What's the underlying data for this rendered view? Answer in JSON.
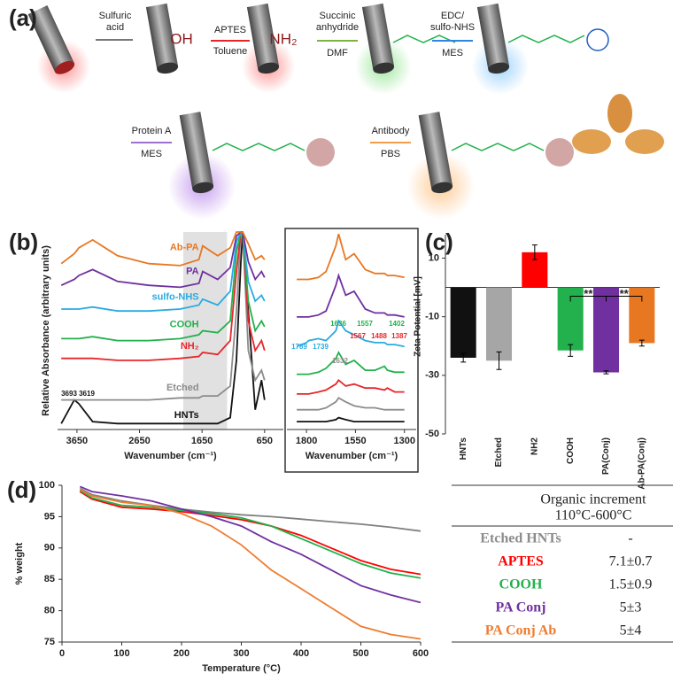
{
  "panel_a": {
    "label": "(a)",
    "texts": [
      "Sulfuric",
      "acid",
      "OH",
      "APTES",
      "Toluene",
      "NH₂",
      "Succinic",
      "anhydride",
      "DMF",
      "EDC/",
      "sulfo-NHS",
      "MES",
      "Protein A",
      "MES",
      "Antibody",
      "PBS"
    ]
  },
  "chart_data": [
    {
      "type": "line",
      "panel": "(b)",
      "ylabel": "Relative Absorbance (arbitrary units)",
      "xlabel": "Wavenumber (cm⁻¹)",
      "xlim": [
        3960,
        350
      ],
      "ylim": [
        0,
        10
      ],
      "xticks": [
        3650,
        2650,
        1650,
        650
      ],
      "highlight": [
        1950,
        1250
      ],
      "x": [
        3900,
        3693,
        3619,
        3400,
        3000,
        2500,
        2000,
        1700,
        1640,
        1400,
        1200,
        1100,
        1030,
        1000,
        910,
        800,
        700,
        650
      ],
      "series": [
        {
          "name": "HNTs",
          "color": "#111111",
          "values": [
            0.3,
            1.5,
            1.3,
            0.4,
            0.3,
            0.3,
            0.3,
            0.3,
            0.3,
            0.3,
            0.6,
            3.5,
            8.5,
            10,
            6,
            1,
            2.5,
            1.5
          ]
        },
        {
          "name": "Etched",
          "color": "#8c8c8c",
          "values": [
            1.5,
            1.5,
            1.5,
            1.5,
            1.5,
            1.5,
            1.6,
            1.6,
            1.7,
            1.7,
            2.2,
            6,
            10,
            10,
            4,
            2.5,
            3,
            2.5
          ]
        },
        {
          "name": "NH₂",
          "color": "#e8262a",
          "values": [
            3.6,
            3.6,
            3.6,
            3.6,
            3.5,
            3.5,
            3.6,
            3.7,
            3.9,
            3.8,
            4.5,
            8,
            10,
            10,
            5.5,
            4,
            4.5,
            4
          ]
        },
        {
          "name": "COOH",
          "color": "#22b14c",
          "values": [
            4.6,
            4.6,
            4.6,
            4.7,
            4.5,
            4.5,
            4.6,
            4.8,
            5.0,
            4.9,
            5.5,
            9,
            10,
            10,
            6.5,
            5,
            5.5,
            5.2
          ]
        },
        {
          "name": "sulfo-NHS",
          "color": "#29abe2",
          "values": [
            6.1,
            6.1,
            6.1,
            6.2,
            6.0,
            6.0,
            6.1,
            6.3,
            6.6,
            6.3,
            7,
            9.5,
            10,
            10,
            7.5,
            6.5,
            6.8,
            6.5
          ]
        },
        {
          "name": "PA",
          "color": "#7030a0",
          "values": [
            7.3,
            7.6,
            7.8,
            8.1,
            7.5,
            7.3,
            7.2,
            7.4,
            8.0,
            7.6,
            8.2,
            9.8,
            10,
            10,
            8.5,
            7.6,
            8,
            7.7
          ]
        },
        {
          "name": "Ab-PA",
          "color": "#e87722",
          "values": [
            8.4,
            8.9,
            9.2,
            9.6,
            8.8,
            8.4,
            8.3,
            8.6,
            9.3,
            8.8,
            9.2,
            10,
            10,
            10,
            9.4,
            8.6,
            8.8,
            8.6
          ]
        }
      ],
      "annotations": [
        {
          "text": "3693",
          "color": "#111111"
        },
        {
          "text": "3619",
          "color": "#111111"
        }
      ]
    },
    {
      "type": "line",
      "xlabel": "Wavenumber (cm⁻¹)",
      "xlim": [
        1900,
        1240
      ],
      "ylim": [
        0,
        10
      ],
      "xticks": [
        1800,
        1550,
        1300
      ],
      "x": [
        1850,
        1800,
        1789,
        1739,
        1700,
        1650,
        1636,
        1600,
        1557,
        1500,
        1450,
        1402,
        1387,
        1350,
        1300
      ],
      "series": [
        {
          "color": "#111111",
          "values": [
            0.4,
            0.4,
            0.4,
            0.4,
            0.4,
            0.5,
            0.6,
            0.5,
            0.4,
            0.4,
            0.4,
            0.4,
            0.4,
            0.4,
            0.4
          ]
        },
        {
          "color": "#8c8c8c",
          "values": [
            1,
            1,
            1,
            1,
            1.1,
            1.4,
            1.6,
            1.4,
            1.2,
            1.1,
            1.1,
            1,
            1,
            1,
            1
          ]
        },
        {
          "color": "#e8262a",
          "values": [
            1.8,
            1.8,
            1.8,
            1.9,
            2,
            2.3,
            2.5,
            2.2,
            2.3,
            2.1,
            2.1,
            2,
            2.1,
            1.9,
            1.9
          ]
        },
        {
          "color": "#22b14c",
          "values": [
            2.8,
            2.8,
            2.8,
            2.9,
            3.1,
            3.6,
            3.9,
            3.3,
            3.5,
            3.0,
            3.0,
            3.2,
            3.0,
            2.9,
            2.9
          ]
        },
        {
          "color": "#29abe2",
          "values": [
            4.2,
            4.4,
            4.5,
            4.6,
            4.5,
            5.0,
            5.5,
            5.0,
            4.8,
            4.5,
            4.4,
            4.4,
            4.3,
            4.3,
            4.2
          ]
        },
        {
          "color": "#7030a0",
          "values": [
            5.7,
            5.7,
            5.7,
            5.8,
            6.0,
            7.3,
            7.8,
            6.8,
            7.0,
            6.1,
            5.9,
            5.9,
            5.8,
            5.8,
            5.7
          ]
        },
        {
          "color": "#e87722",
          "values": [
            7.6,
            7.6,
            7.6,
            7.7,
            8.0,
            9.3,
            9.9,
            8.6,
            8.9,
            8.1,
            7.9,
            7.9,
            7.8,
            7.8,
            7.7
          ]
        }
      ],
      "annotations": [
        {
          "text": "1789",
          "color": "#29abe2"
        },
        {
          "text": "1739",
          "color": "#29abe2"
        },
        {
          "text": "1636",
          "color": "#22b14c"
        },
        {
          "text": "1557",
          "color": "#22b14c"
        },
        {
          "text": "1402",
          "color": "#22b14c"
        },
        {
          "text": "1567",
          "color": "#e8262a"
        },
        {
          "text": "1488",
          "color": "#e8262a"
        },
        {
          "text": "1387",
          "color": "#e8262a"
        },
        {
          "text": "1632",
          "color": "#8c8c8c"
        }
      ]
    },
    {
      "type": "bar",
      "panel": "(c)",
      "ylabel": "Zeta Potential [mV]",
      "categories": [
        "HNTs",
        "Etched",
        "NH2",
        "COOH",
        "PA(Conj)",
        "Ab-PA(Conj)"
      ],
      "values": [
        -24,
        -25,
        12,
        -21.5,
        -29,
        -19
      ],
      "errors": [
        1.5,
        3,
        2.5,
        2,
        0.5,
        1
      ],
      "colors": [
        "#111111",
        "#a6a6a6",
        "#ff0000",
        "#22b14c",
        "#7030a0",
        "#e87722"
      ],
      "ylim": [
        -50,
        18
      ],
      "yticks": [
        -50,
        -30,
        -10,
        10
      ],
      "annotations": [
        "**",
        "**"
      ]
    },
    {
      "type": "line",
      "panel": "(d)",
      "ylabel": "% weight",
      "xlabel": "Temperature (°C)",
      "xlim": [
        0,
        600
      ],
      "ylim": [
        75,
        100
      ],
      "xticks": [
        0,
        100,
        200,
        300,
        400,
        500,
        600
      ],
      "yticks": [
        75,
        80,
        85,
        90,
        95,
        100
      ],
      "x": [
        30,
        50,
        100,
        150,
        200,
        250,
        300,
        350,
        400,
        450,
        500,
        550,
        600
      ],
      "series": [
        {
          "color": "#808080",
          "values": [
            99.5,
            98.5,
            97.5,
            96.8,
            96.2,
            95.7,
            95.3,
            95.0,
            94.6,
            94.2,
            93.8,
            93.3,
            92.7
          ]
        },
        {
          "color": "#ff0000",
          "values": [
            99,
            97.8,
            96.5,
            96.2,
            95.8,
            95.2,
            94.5,
            93.5,
            92,
            90,
            88,
            86.6,
            85.8
          ]
        },
        {
          "color": "#22b14c",
          "values": [
            99.2,
            98,
            96.8,
            96.5,
            96,
            95.5,
            94.8,
            93.5,
            91.5,
            89.5,
            87.5,
            86,
            85.2
          ]
        },
        {
          "color": "#7030a0",
          "values": [
            99.8,
            99,
            98.3,
            97.5,
            96.2,
            95,
            93.5,
            91,
            89,
            86.5,
            84,
            82.5,
            81.3
          ]
        },
        {
          "color": "#ed7d31",
          "values": [
            99.3,
            98.3,
            97.3,
            96.8,
            95.5,
            93.5,
            90.5,
            86.5,
            83.5,
            80.5,
            77.5,
            76.2,
            75.5
          ]
        }
      ]
    }
  ],
  "table": {
    "header": [
      "Organic increment",
      "110°C-600°C"
    ],
    "rows": [
      {
        "name": "Etched HNTs",
        "value": "-",
        "color": "#8c8c8c"
      },
      {
        "name": "APTES",
        "value": "7.1±0.7",
        "color": "#ff0000"
      },
      {
        "name": "COOH",
        "value": "1.5±0.9",
        "color": "#22b14c"
      },
      {
        "name": "PA Conj",
        "value": "5±3",
        "color": "#7030a0"
      },
      {
        "name": "PA Conj Ab",
        "value": "5±4",
        "color": "#ed7d31"
      }
    ]
  }
}
